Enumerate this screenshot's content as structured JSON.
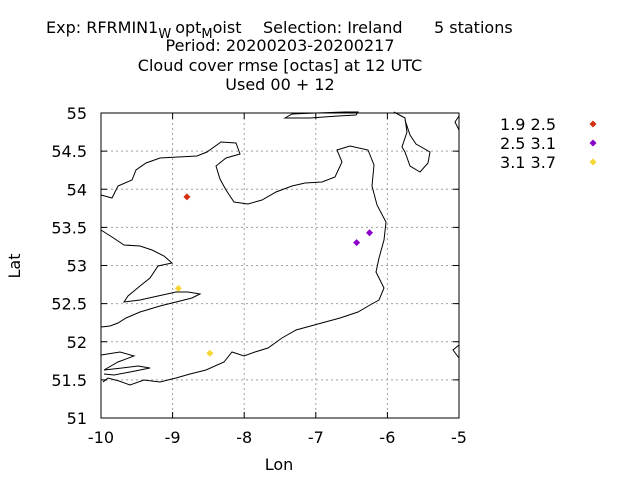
{
  "chart_data": {
    "type": "scatter",
    "title": {
      "exp_prefix": "Exp: RFRMIN1",
      "sub1": "W",
      "mid": "opt",
      "sub2": "M",
      "exp_suffix": "oist",
      "selection": "Selection: Ireland",
      "stations": "5 stations",
      "line2": "Period: 20200203-20200217",
      "line3": "Cloud cover rmse [octas] at  12 UTC",
      "line4": "Used  00 + 12"
    },
    "xlabel": "Lon",
    "ylabel": "Lat",
    "xlim": [
      -10,
      -5
    ],
    "ylim": [
      51,
      55
    ],
    "grid": true,
    "x_ticks": [
      "-10",
      "-9",
      "-8",
      "-7",
      "-6",
      "-5"
    ],
    "y_ticks": [
      "51",
      "51.5",
      "52",
      "52.5",
      "53",
      "53.5",
      "54",
      "54.5",
      "55"
    ],
    "legend_position": "right",
    "series": [
      {
        "name": "1.9 2.5",
        "color": "#d62e10",
        "points": [
          [
            -8.8,
            53.9
          ]
        ]
      },
      {
        "name": "2.5 3.1",
        "color": "#8a00c8",
        "points": [
          [
            -6.43,
            53.3
          ],
          [
            -6.25,
            53.43
          ]
        ]
      },
      {
        "name": "3.1 3.7",
        "color": "#f5d633",
        "points": [
          [
            -8.92,
            52.7
          ],
          [
            -8.48,
            51.85
          ]
        ]
      }
    ]
  }
}
